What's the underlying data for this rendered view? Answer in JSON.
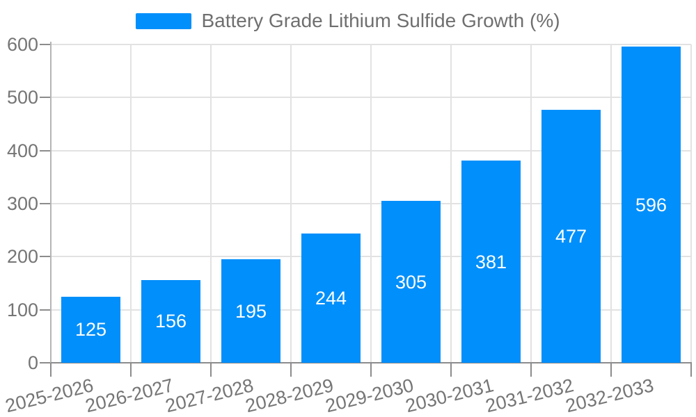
{
  "chart_data": {
    "type": "bar",
    "title": "Battery Grade Lithium Sulfide Growth (%)",
    "legend": {
      "position": "top-center",
      "entries": [
        "Battery Grade Lithium Sulfide Growth (%)"
      ]
    },
    "categories": [
      "2025-2026",
      "2026-2027",
      "2027-2028",
      "2028-2029",
      "2029-2030",
      "2030-2031",
      "2031-2032",
      "2032-2033"
    ],
    "series": [
      {
        "name": "Battery Grade Lithium Sulfide Growth (%)",
        "values": [
          125,
          156,
          195,
          244,
          305,
          381,
          477,
          596
        ]
      }
    ],
    "data_labels_shown": true,
    "xlabel": "",
    "ylabel": "",
    "ylim": [
      0,
      600
    ],
    "yticks": [
      0,
      100,
      200,
      300,
      400,
      500,
      600
    ],
    "grid": true,
    "colors": {
      "bar": "#008FFB",
      "bar_label": "#ffffff",
      "grid_line": "#e2e2e2",
      "axis_line": "#8c8c8c",
      "y_axis_line": "#b5b5b5",
      "tick_label": "#757575",
      "legend_text": "#6f6f6f"
    }
  }
}
